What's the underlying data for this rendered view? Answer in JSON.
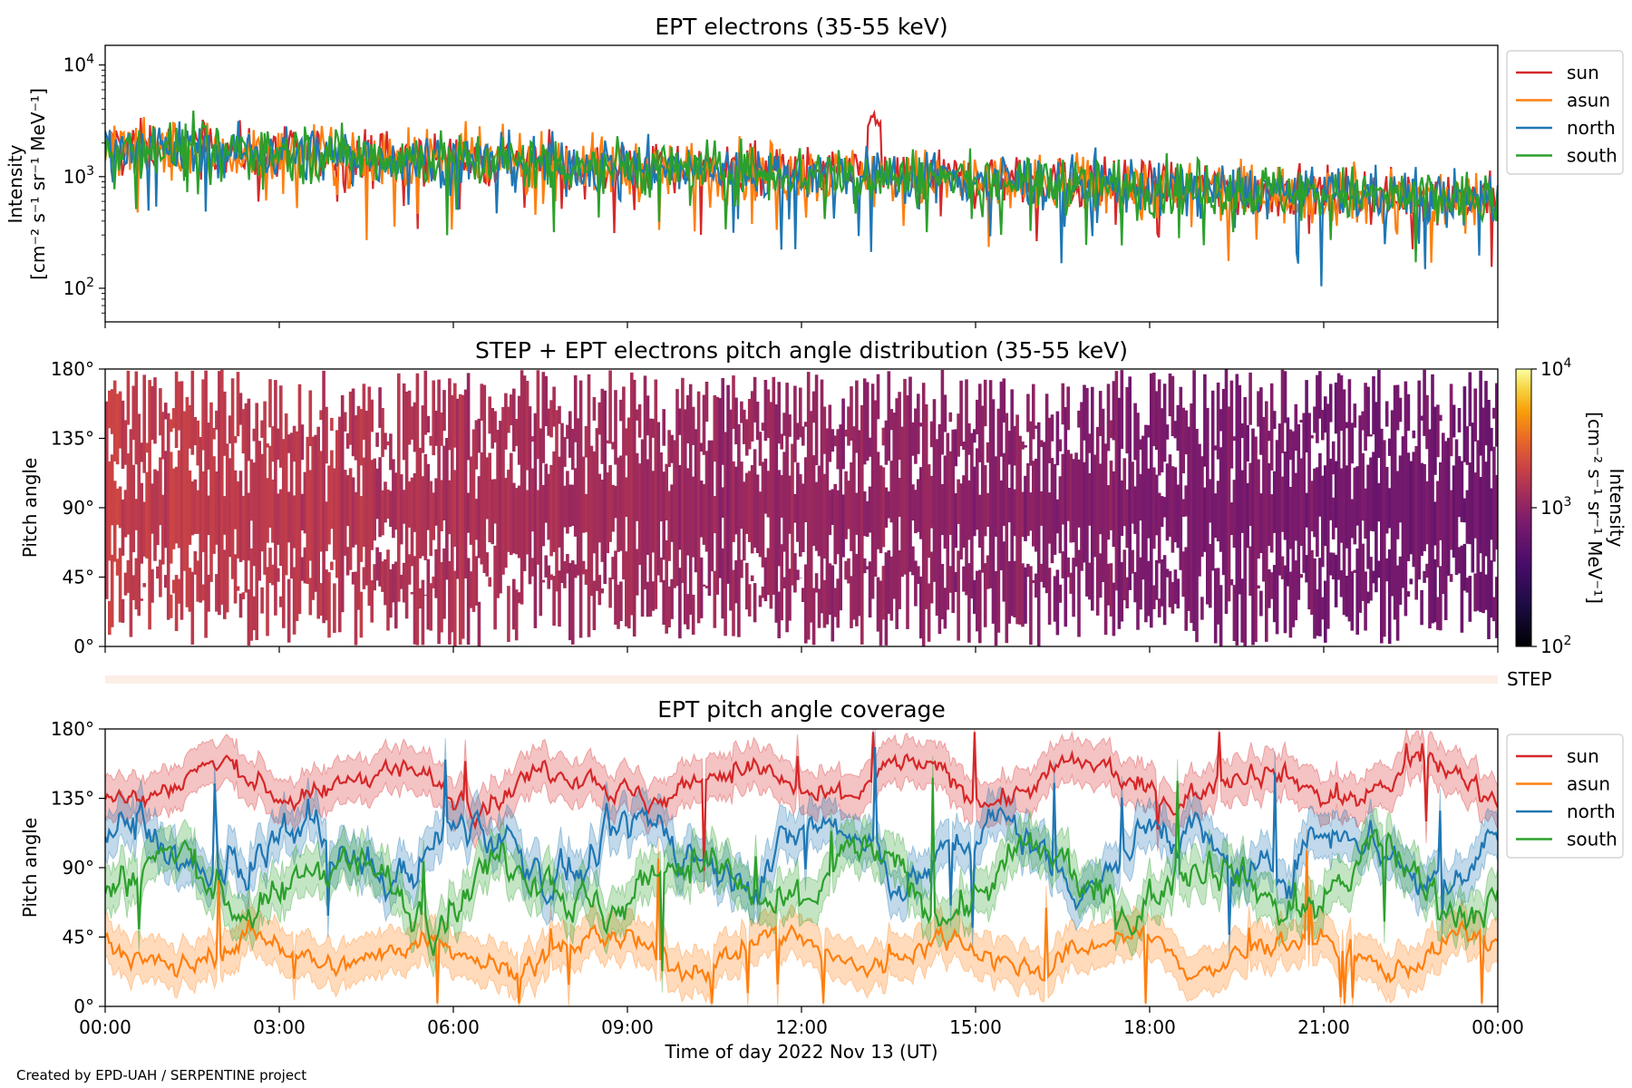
{
  "figure": {
    "credit": "Created by EPD-UAH / SERPENTINE project",
    "xlabel": "Time of day 2022 Nov 13 (UT)",
    "xticks": [
      "00:00",
      "03:00",
      "06:00",
      "09:00",
      "12:00",
      "15:00",
      "18:00",
      "21:00",
      "00:00"
    ]
  },
  "colors": {
    "sun": "#d62728",
    "asun": "#ff7f0e",
    "north": "#1f77b4",
    "south": "#2ca02c"
  },
  "chart_data": [
    {
      "type": "line",
      "title": "EPT electrons (35-55 keV)",
      "ylabel_line1": "Intensity",
      "ylabel_line2": "[cm⁻² s⁻¹ sr⁻¹ MeV⁻¹]",
      "yscale": "log",
      "ylim": [
        50,
        15000
      ],
      "yticks": [
        {
          "value": 100,
          "base": "10",
          "exp": "2"
        },
        {
          "value": 1000,
          "base": "10",
          "exp": "3"
        },
        {
          "value": 10000,
          "base": "10",
          "exp": "4"
        }
      ],
      "xlim_hours": [
        0,
        24
      ],
      "legend": "outside-right",
      "series": [
        {
          "name": "sun",
          "start": 1900,
          "end": 620,
          "noise": 0.16
        },
        {
          "name": "asun",
          "start": 1800,
          "end": 600,
          "noise": 0.19
        },
        {
          "name": "north",
          "start": 1850,
          "end": 620,
          "noise": 0.17
        },
        {
          "name": "south",
          "start": 1900,
          "end": 610,
          "noise": 0.18
        }
      ],
      "event": {
        "series": "sun",
        "time_hours": 13.25,
        "peak": 3300
      }
    },
    {
      "type": "heatmap",
      "title": "STEP + EPT electrons pitch angle distribution (35-55 keV)",
      "ylabel": "Pitch angle",
      "ylim": [
        0,
        180
      ],
      "yticks": [
        "0°",
        "45°",
        "90°",
        "135°",
        "180°"
      ],
      "colorbar": {
        "label_line1": "Intensity",
        "label_line2": "[cm⁻² s⁻¹ sr⁻¹ MeV⁻¹]",
        "scale": "log",
        "range": [
          100,
          10000
        ],
        "ticks": [
          {
            "value": 100,
            "base": "10",
            "exp": "2"
          },
          {
            "value": 1000,
            "base": "10",
            "exp": "3"
          },
          {
            "value": 10000,
            "base": "10",
            "exp": "4"
          }
        ]
      },
      "intensity_trend": {
        "start": 1800,
        "end": 650
      }
    },
    {
      "type": "bar",
      "label": "STEP",
      "note": "empty STEP coverage strip"
    },
    {
      "type": "line",
      "title": "EPT pitch angle coverage",
      "ylabel": "Pitch angle",
      "ylim": [
        0,
        180
      ],
      "yticks": [
        "0°",
        "45°",
        "90°",
        "135°",
        "180°"
      ],
      "xlim_hours": [
        0,
        24
      ],
      "legend": "outside-right",
      "series": [
        {
          "name": "sun",
          "mean": 145,
          "amp": 18
        },
        {
          "name": "asun",
          "mean": 35,
          "amp": 18
        },
        {
          "name": "north",
          "mean": 100,
          "amp": 30
        },
        {
          "name": "south",
          "mean": 80,
          "amp": 30
        }
      ]
    }
  ]
}
